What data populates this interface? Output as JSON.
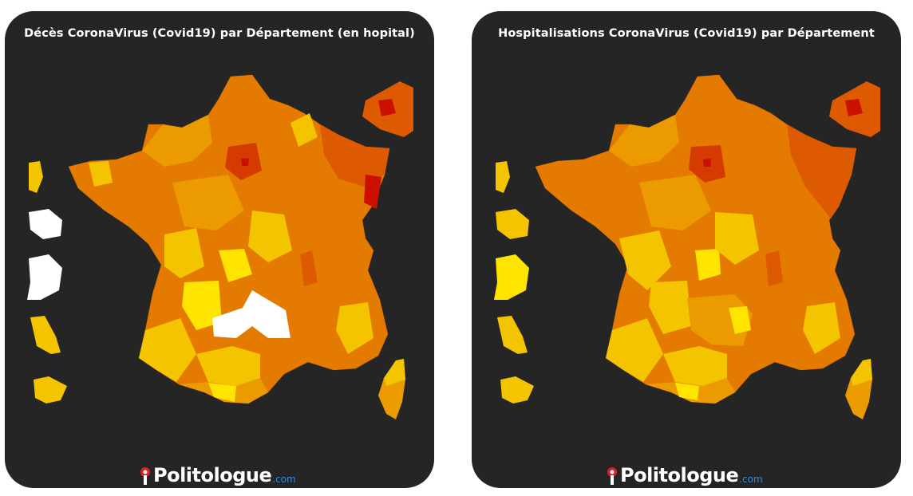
{
  "panels": [
    {
      "title": "Décès CoronaVirus (Covid19) par Département (en hopital)",
      "brand": {
        "name": "Politologue",
        "tld": ".com"
      },
      "colors": {
        "background": "#252525",
        "none": "#ffffff",
        "low": "#ffe400",
        "mid_low": "#f4c400",
        "mid": "#eb9a00",
        "mid_high": "#e57a00",
        "high": "#de5a00",
        "very_high": "#d53a00",
        "max": "#cc1000"
      }
    },
    {
      "title": "Hospitalisations CoronaVirus (Covid19) par Département",
      "brand": {
        "name": "Politologue",
        "tld": ".com"
      },
      "colors": {
        "background": "#252525",
        "low": "#ffe400",
        "mid_low": "#f4c400",
        "mid": "#eb9a00",
        "mid_high": "#e57a00",
        "high": "#de5a00",
        "very_high": "#d53a00",
        "max": "#cc1000"
      }
    }
  ]
}
